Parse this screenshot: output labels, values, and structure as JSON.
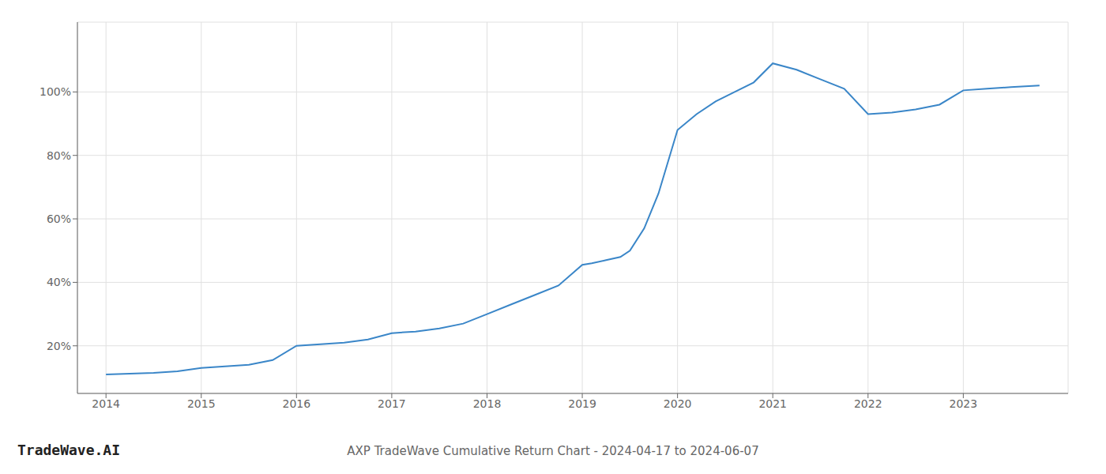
{
  "chart_data": {
    "type": "line",
    "title": "AXP TradeWave Cumulative Return Chart - 2024-04-17 to 2024-06-07",
    "annotations": [
      "TradeWave.AI"
    ],
    "x": [
      2014.0,
      2014.25,
      2014.5,
      2014.75,
      2015.0,
      2015.25,
      2015.5,
      2015.75,
      2016.0,
      2016.25,
      2016.5,
      2016.75,
      2017.0,
      2017.25,
      2017.5,
      2017.75,
      2018.0,
      2018.25,
      2018.5,
      2018.75,
      2019.0,
      2019.1,
      2019.25,
      2019.4,
      2019.5,
      2019.65,
      2019.8,
      2020.0,
      2020.2,
      2020.4,
      2020.6,
      2020.8,
      2021.0,
      2021.25,
      2021.5,
      2021.75,
      2022.0,
      2022.25,
      2022.5,
      2022.75,
      2023.0,
      2023.25,
      2023.5,
      2023.8
    ],
    "values": [
      11,
      11.2,
      11.5,
      12.0,
      13.0,
      13.5,
      14.0,
      15.5,
      20.0,
      20.5,
      21.0,
      22.0,
      24.0,
      24.5,
      25.5,
      27.0,
      30.0,
      33.0,
      36.0,
      39.0,
      45.5,
      46.0,
      47.0,
      48.0,
      50.0,
      57.0,
      68.0,
      88.0,
      93.0,
      97.0,
      100.0,
      103.0,
      109.0,
      107.0,
      104.0,
      101.0,
      93.0,
      93.5,
      94.5,
      96.0,
      100.5,
      101.0,
      101.5,
      102.0
    ],
    "color": "#3a86c8",
    "xlim": [
      2013.7,
      2024.1
    ],
    "xticks": [
      2014,
      2015,
      2016,
      2017,
      2018,
      2019,
      2020,
      2021,
      2022,
      2023
    ],
    "ylim": [
      5,
      122
    ],
    "yticks": [
      {
        "value": 20,
        "label": "20%"
      },
      {
        "value": 40,
        "label": "40%"
      },
      {
        "value": 60,
        "label": "60%"
      },
      {
        "value": 80,
        "label": "80%"
      },
      {
        "value": 100,
        "label": "100%"
      }
    ],
    "grid": true
  }
}
